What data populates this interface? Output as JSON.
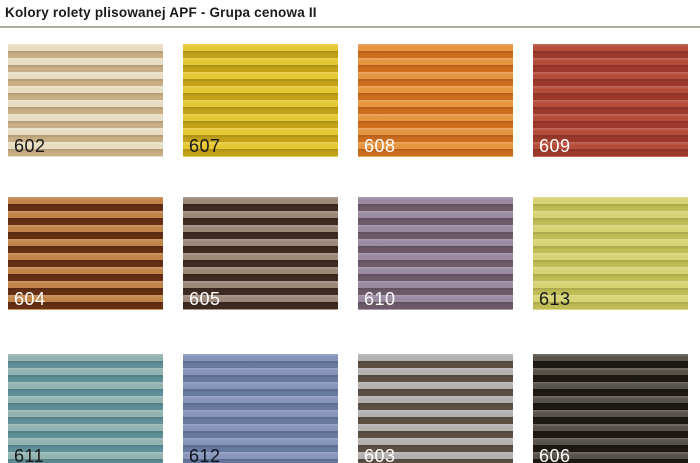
{
  "page": {
    "title": "Kolory rolety plisowanej APF - Grupa cenowa II"
  },
  "swatches": [
    {
      "code": "602",
      "light_color": "#e8ddc2",
      "dark_color": "#c9ae85",
      "label_color": "#1a1a1a"
    },
    {
      "code": "607",
      "light_color": "#e5c733",
      "dark_color": "#c2a119",
      "label_color": "#1a1a1a"
    },
    {
      "code": "608",
      "light_color": "#e59440",
      "dark_color": "#cb6c1f",
      "label_color": "#ffffff"
    },
    {
      "code": "609",
      "light_color": "#b54c3c",
      "dark_color": "#9c392b",
      "label_color": "#ffffff"
    },
    {
      "code": "604",
      "light_color": "#c08449",
      "dark_color": "#642f13",
      "label_color": "#ffffff"
    },
    {
      "code": "605",
      "light_color": "#9c8778",
      "dark_color": "#3e2a20",
      "label_color": "#ffffff"
    },
    {
      "code": "610",
      "light_color": "#998aa0",
      "dark_color": "#6d5a68",
      "label_color": "#ffffff"
    },
    {
      "code": "613",
      "light_color": "#d6d375",
      "dark_color": "#bfbc55",
      "label_color": "#1a1a1a"
    },
    {
      "code": "611",
      "light_color": "#93b3b1",
      "dark_color": "#5e8f97",
      "label_color": "#1a1a1a"
    },
    {
      "code": "612",
      "light_color": "#8795ba",
      "dark_color": "#67799e",
      "label_color": "#10131f"
    },
    {
      "code": "603",
      "light_color": "#b3b1af",
      "dark_color": "#5c5044",
      "label_color": "#ffffff"
    },
    {
      "code": "606",
      "light_color": "#57524a",
      "dark_color": "#1d1812",
      "label_color": "#ffffff"
    }
  ],
  "layout": {
    "columns_per_row": 4
  }
}
